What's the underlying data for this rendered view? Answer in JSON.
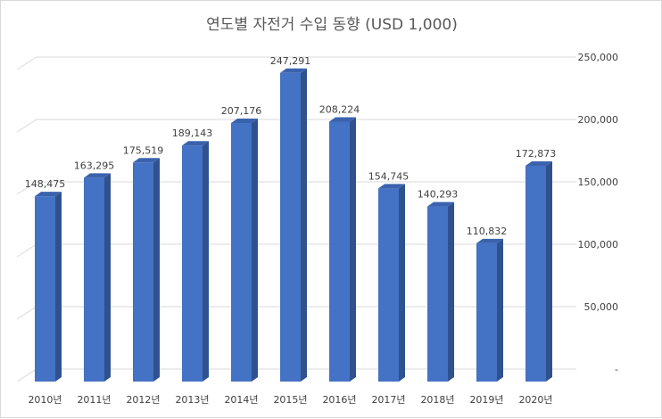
{
  "chart_data": {
    "type": "bar",
    "title": "연도별 자전거 수입 동향 (USD 1,000)",
    "xlabel": "",
    "ylabel": "",
    "categories": [
      "2010년",
      "2011년",
      "2012년",
      "2013년",
      "2014년",
      "2015년",
      "2016년",
      "2017년",
      "2018년",
      "2019년",
      "2020년"
    ],
    "values": [
      148475,
      163295,
      175519,
      189143,
      207176,
      247291,
      208224,
      154745,
      140293,
      110832,
      172873
    ],
    "value_labels": [
      "148,475",
      "163,295",
      "175,519",
      "189,143",
      "207,176",
      "247,291",
      "208,224",
      "154,745",
      "140,293",
      "110,832",
      "172,873"
    ],
    "ylim": [
      0,
      250000
    ],
    "y_ticks": [
      0,
      50000,
      100000,
      150000,
      200000,
      250000
    ],
    "y_tick_labels": [
      "-",
      "50,000",
      "100,000",
      "150,000",
      "200,000",
      "250,000"
    ],
    "y_axis_position": "right",
    "grid": true,
    "legend": "none",
    "style": "3d-column",
    "colors": {
      "bar_front": "#4472c4",
      "bar_side": "#2f528f",
      "bar_top": "#3a63ad",
      "grid": "#d9d9d9",
      "text": "#404040",
      "title": "#595959"
    }
  }
}
